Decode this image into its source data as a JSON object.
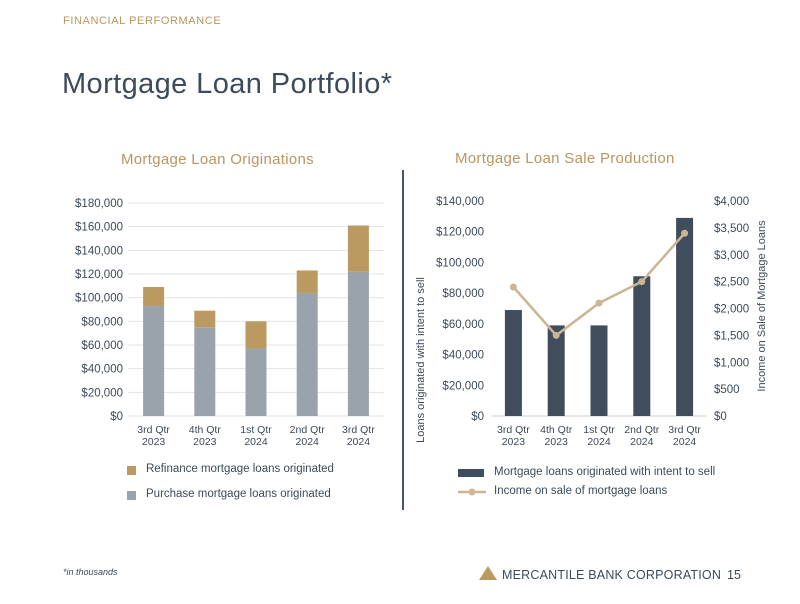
{
  "header": {
    "section_label": "FINANCIAL PERFORMANCE",
    "title": "Mortgage Loan Portfolio*"
  },
  "footer": {
    "footnote": "*in thousands",
    "company": "MERCANTILE BANK CORPORATION",
    "page_number": "15"
  },
  "colors": {
    "gold": "#bb9a62",
    "gray": "#9aa3ab",
    "navy": "#3f4d5c",
    "line": "#cbb593",
    "text": "#3d4a5a"
  },
  "chart_data": [
    {
      "type": "bar",
      "stacked": true,
      "title": "Mortgage Loan Originations",
      "categories": [
        "3rd Qtr 2023",
        "4th Qtr 2023",
        "1st Qtr 2024",
        "2nd Qtr 2024",
        "3rd Qtr 2024"
      ],
      "category_lines": [
        [
          "3rd Qtr",
          "2023"
        ],
        [
          "4th Qtr",
          "2023"
        ],
        [
          "1st Qtr",
          "2024"
        ],
        [
          "2nd Qtr",
          "2024"
        ],
        [
          "3rd Qtr",
          "2024"
        ]
      ],
      "series": [
        {
          "name": "Purchase mortgage loans originated",
          "values": [
            93000,
            75000,
            57000,
            104000,
            122000
          ],
          "color": "#9aa3ab"
        },
        {
          "name": "Refinance mortgage loans originated",
          "values": [
            16000,
            14000,
            23000,
            19000,
            39000
          ],
          "color": "#bb9a62"
        }
      ],
      "legend_order": [
        "Refinance mortgage loans originated",
        "Purchase mortgage loans originated"
      ],
      "ylim": [
        0,
        180000
      ],
      "yticks": [
        "$0",
        "$20,000",
        "$40,000",
        "$60,000",
        "$80,000",
        "$100,000",
        "$120,000",
        "$140,000",
        "$160,000",
        "$180,000"
      ],
      "grid": true,
      "legend_position": "bottom"
    },
    {
      "type": "bar-line",
      "title": "Mortgage Loan Sale Production",
      "categories": [
        "3rd Qtr 2023",
        "4th Qtr 2023",
        "1st Qtr 2024",
        "2nd Qtr 2024",
        "3rd Qtr 2024"
      ],
      "category_lines": [
        [
          "3rd Qtr",
          "2023"
        ],
        [
          "4th Qtr",
          "2023"
        ],
        [
          "1st Qtr",
          "2024"
        ],
        [
          "2nd Qtr",
          "2024"
        ],
        [
          "3rd Qtr",
          "2024"
        ]
      ],
      "bar_series": {
        "name": "Mortgage loans originated with intent to sell",
        "values": [
          69000,
          59000,
          59000,
          91000,
          129000
        ],
        "color": "#3f4d5c"
      },
      "line_series": {
        "name": "Income on sale of mortgage loans",
        "values": [
          2400,
          1500,
          2100,
          2500,
          3400
        ],
        "color": "#cbb593"
      },
      "ylabel_left": "Loans originated with intent to sell",
      "ylabel_right": "Income on Sale of Mortgage Loans",
      "ylim_left": [
        0,
        140000
      ],
      "ylim_right": [
        0,
        4000
      ],
      "yticks_left": [
        "$0",
        "$20,000",
        "$40,000",
        "$60,000",
        "$80,000",
        "$100,000",
        "$120,000",
        "$140,000"
      ],
      "yticks_right": [
        "$0",
        "$500",
        "$1,000",
        "$1,500",
        "$2,000",
        "$2,500",
        "$3,000",
        "$3,500",
        "$4,000"
      ],
      "grid": false,
      "legend_position": "bottom"
    }
  ]
}
